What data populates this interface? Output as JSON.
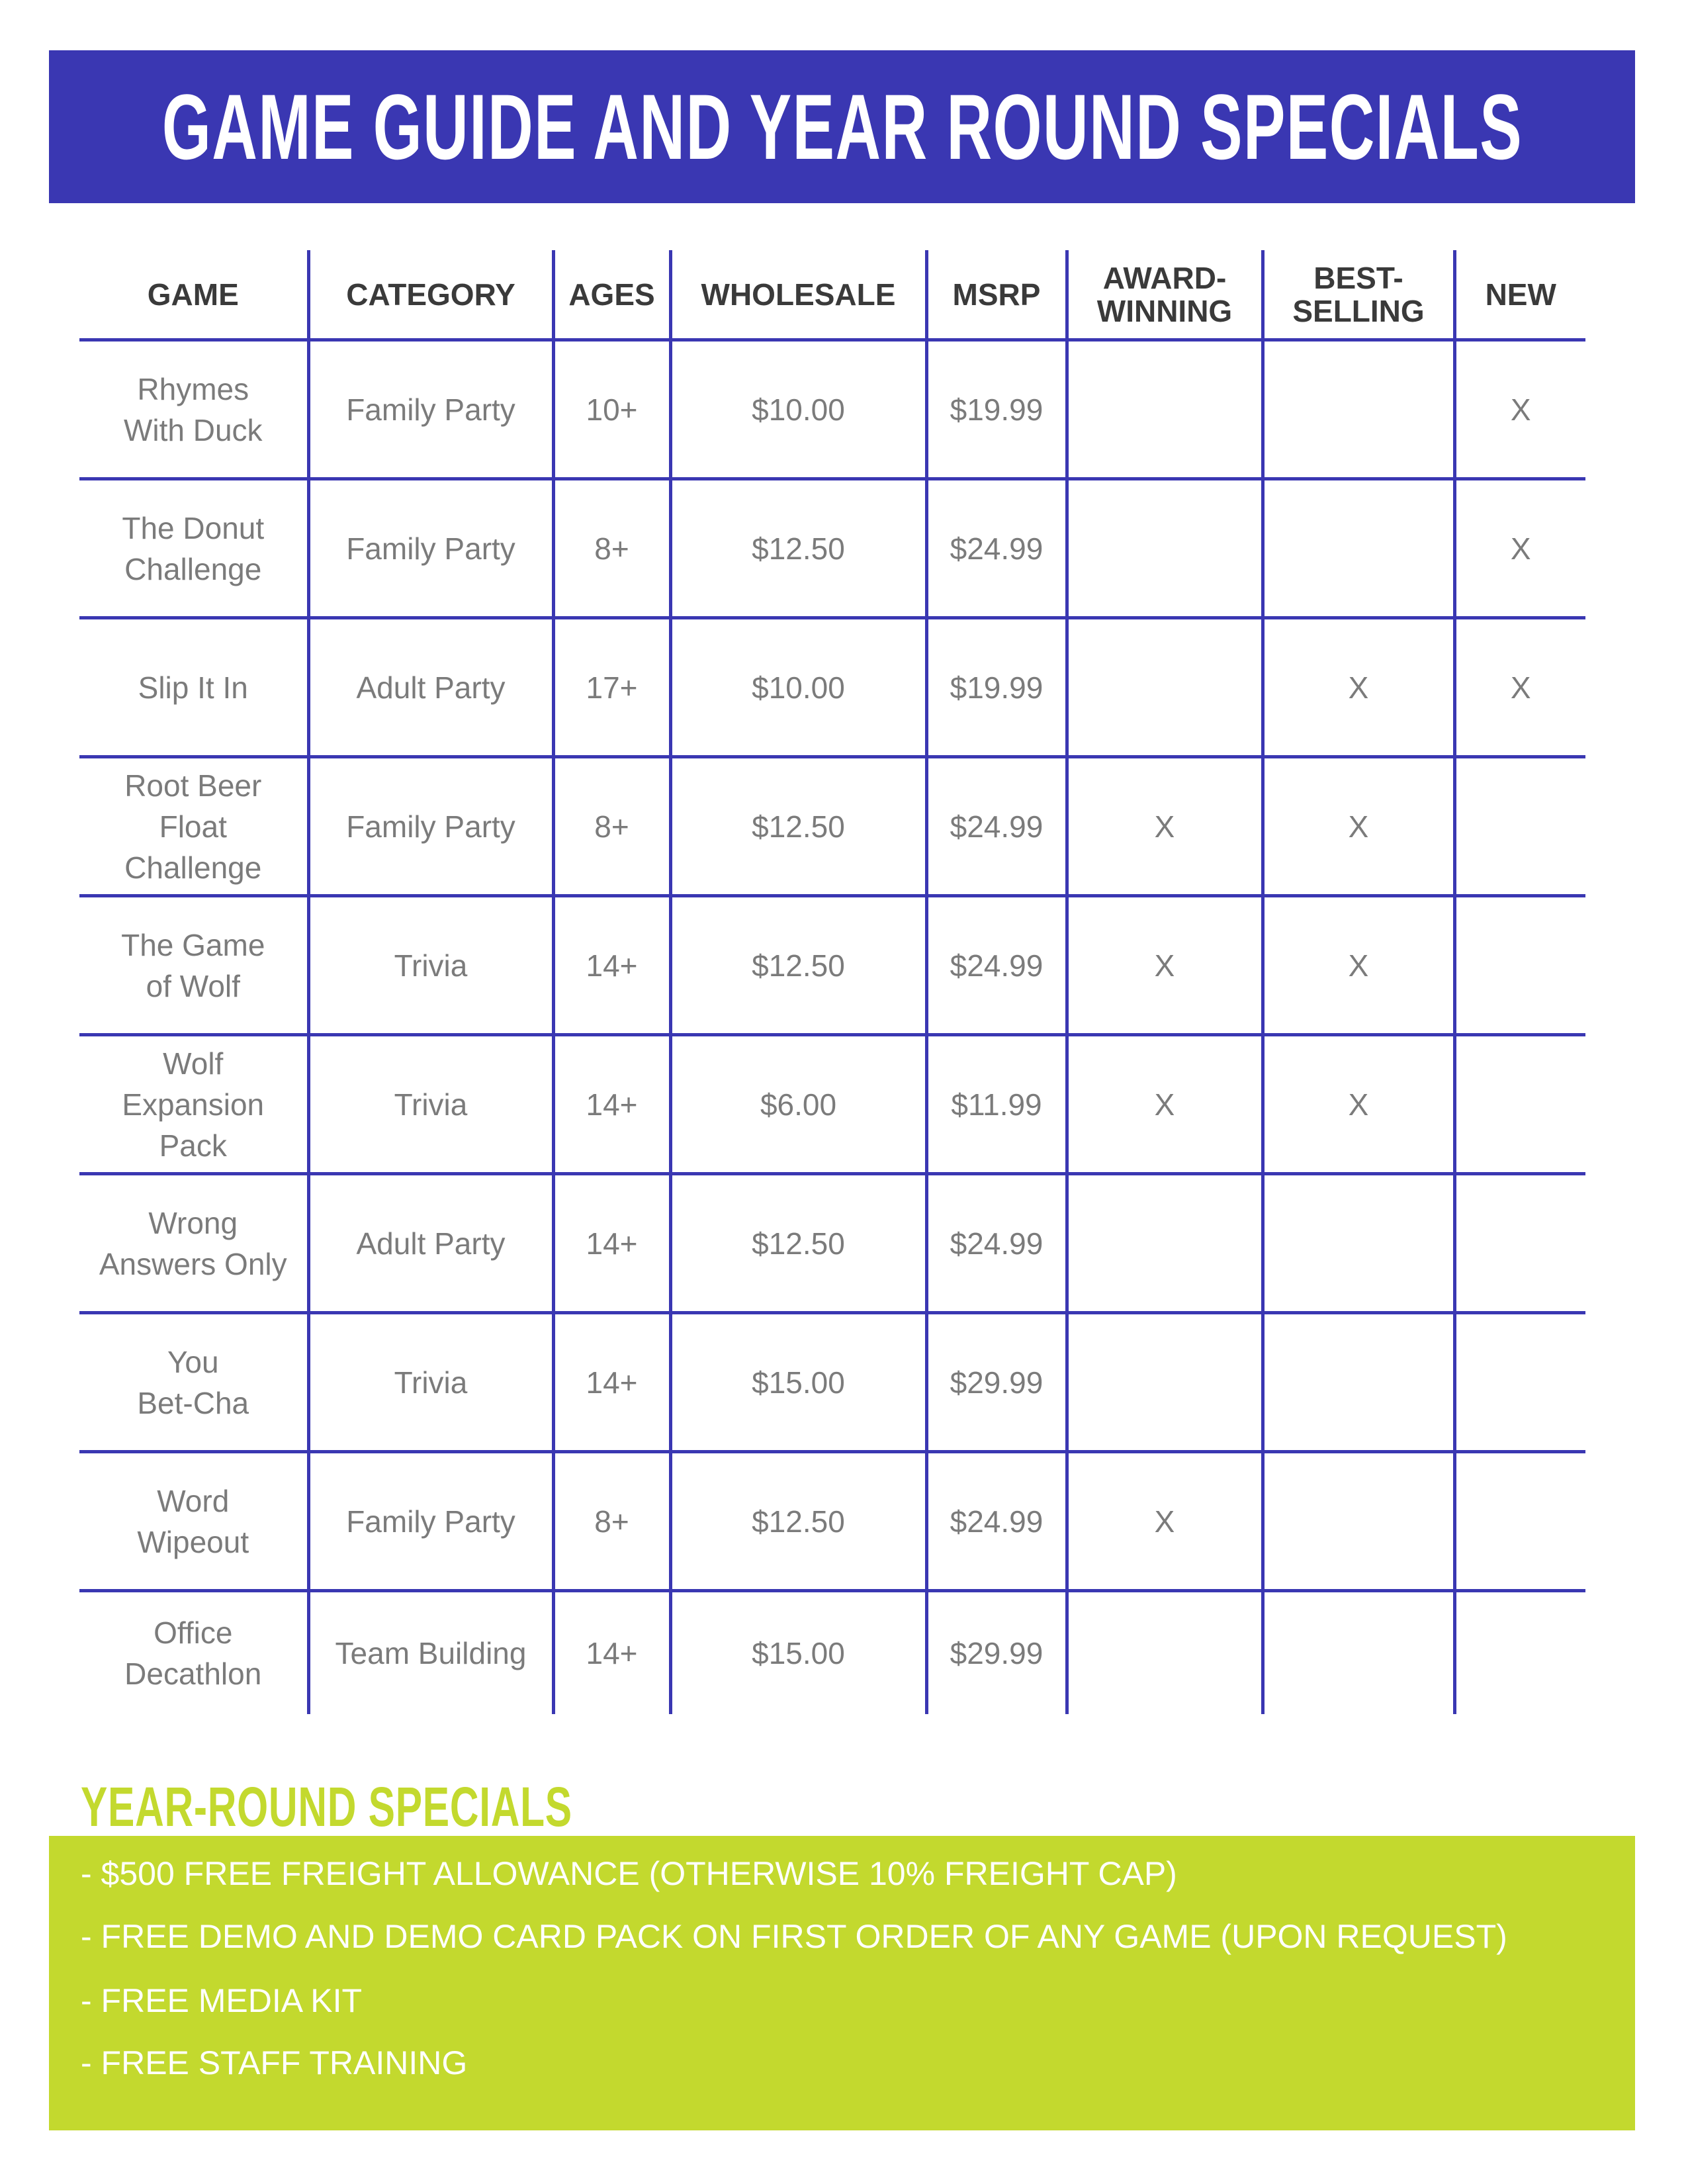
{
  "title": "GAME GUIDE AND YEAR ROUND SPECIALS",
  "colors": {
    "brand_blue": "#3a37b2",
    "accent_green": "#c3d92e",
    "header_text": "#3a3a3a",
    "cell_text": "#7b7b7b"
  },
  "table": {
    "headers": [
      "GAME",
      "CATEGORY",
      "AGES",
      "WHOLESALE",
      "MSRP",
      "AWARD-\nWINNING",
      "BEST-\nSELLING",
      "NEW"
    ],
    "rows": [
      {
        "game": "Rhymes\nWith Duck",
        "category": "Family Party",
        "ages": "10+",
        "wholesale": "$10.00",
        "msrp": "$19.99",
        "award": "",
        "best": "",
        "new": "X"
      },
      {
        "game": "The Donut\nChallenge",
        "category": "Family Party",
        "ages": "8+",
        "wholesale": "$12.50",
        "msrp": "$24.99",
        "award": "",
        "best": "",
        "new": "X"
      },
      {
        "game": "Slip It In",
        "category": "Adult Party",
        "ages": "17+",
        "wholesale": "$10.00",
        "msrp": "$19.99",
        "award": "",
        "best": "X",
        "new": "X"
      },
      {
        "game": "Root Beer\nFloat\nChallenge",
        "category": "Family Party",
        "ages": "8+",
        "wholesale": "$12.50",
        "msrp": "$24.99",
        "award": "X",
        "best": "X",
        "new": ""
      },
      {
        "game": "The Game\nof Wolf",
        "category": "Trivia",
        "ages": "14+",
        "wholesale": "$12.50",
        "msrp": "$24.99",
        "award": "X",
        "best": "X",
        "new": ""
      },
      {
        "game": "Wolf\nExpansion\nPack",
        "category": "Trivia",
        "ages": "14+",
        "wholesale": "$6.00",
        "msrp": "$11.99",
        "award": "X",
        "best": "X",
        "new": ""
      },
      {
        "game": "Wrong\nAnswers Only",
        "category": "Adult Party",
        "ages": "14+",
        "wholesale": "$12.50",
        "msrp": "$24.99",
        "award": "",
        "best": "",
        "new": ""
      },
      {
        "game": "You\nBet-Cha",
        "category": "Trivia",
        "ages": "14+",
        "wholesale": "$15.00",
        "msrp": "$29.99",
        "award": "",
        "best": "",
        "new": ""
      },
      {
        "game": "Word\nWipeout",
        "category": "Family Party",
        "ages": "8+",
        "wholesale": "$12.50",
        "msrp": "$24.99",
        "award": "X",
        "best": "",
        "new": ""
      },
      {
        "game": "Office\nDecathlon",
        "category": "Team Building",
        "ages": "14+",
        "wholesale": "$15.00",
        "msrp": "$29.99",
        "award": "",
        "best": "",
        "new": ""
      }
    ]
  },
  "specials": {
    "title": "YEAR-ROUND SPECIALS",
    "items": [
      "- $500 FREE FREIGHT ALLOWANCE (OTHERWISE 10% FREIGHT CAP)",
      "- FREE DEMO AND DEMO CARD PACK ON FIRST ORDER OF ANY GAME (UPON REQUEST)",
      "- FREE MEDIA KIT",
      "- FREE STAFF TRAINING"
    ]
  }
}
